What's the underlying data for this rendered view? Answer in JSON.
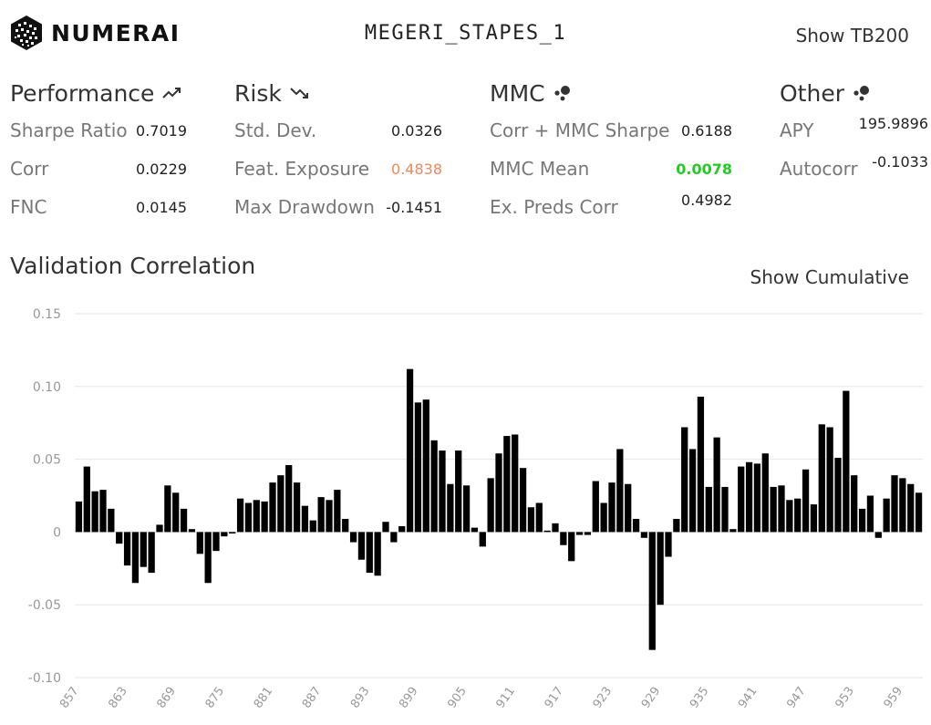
{
  "header": {
    "brand": "NUMERAI",
    "model_name": "MEGERI_STAPES_1",
    "show_tb200_label": "Show TB200"
  },
  "sections": {
    "performance": {
      "title": "Performance",
      "icon": "trending-up-icon",
      "metrics": [
        {
          "label": "Sharpe Ratio",
          "value": "0.7019"
        },
        {
          "label": "Corr",
          "value": "0.0229"
        },
        {
          "label": "FNC",
          "value": "0.0145"
        }
      ]
    },
    "risk": {
      "title": "Risk",
      "icon": "trending-down-icon",
      "metrics": [
        {
          "label": "Std. Dev.",
          "value": "0.0326"
        },
        {
          "label": "Feat. Exposure",
          "value": "0.4838"
        },
        {
          "label": "Max Drawdown",
          "value": "-0.1451"
        }
      ]
    },
    "mmc": {
      "title": "MMC",
      "icon": "bubbles-icon",
      "metrics": [
        {
          "label": "Corr + MMC Sharpe",
          "value": "0.6188"
        },
        {
          "label": "MMC Mean",
          "value": "0.0078"
        },
        {
          "label": "Ex. Preds Corr",
          "value": "0.4982"
        }
      ]
    },
    "other": {
      "title": "Other",
      "icon": "bubbles-icon",
      "metrics": [
        {
          "label": "APY",
          "value": "195.9896"
        },
        {
          "label": "Autocorr",
          "value": "-0.1033"
        }
      ]
    }
  },
  "colors": {
    "warning": "#f0885a",
    "positive": "#22cc22",
    "bar": "#000000",
    "grid": "#e6e6e6",
    "tick_label": "#999999"
  },
  "chart": {
    "title": "Validation Correlation",
    "show_cumulative_label": "Show Cumulative"
  },
  "chart_data": {
    "type": "bar",
    "title": "Validation Correlation",
    "xlabel": "",
    "ylabel": "",
    "ylim": [
      -0.1,
      0.15
    ],
    "grid": true,
    "legend": "none",
    "yticks": [
      "0.15",
      "0.10",
      "0.05",
      "0",
      "-0.05",
      "-0.10"
    ],
    "ytick_values": [
      0.15,
      0.1,
      0.05,
      0,
      -0.05,
      -0.1
    ],
    "xticks": [
      "857",
      "863",
      "869",
      "875",
      "881",
      "887",
      "893",
      "899",
      "905",
      "911",
      "917",
      "923",
      "929",
      "935",
      "941",
      "947",
      "953",
      "959"
    ],
    "x_start": 857,
    "values": [
      0.021,
      0.045,
      0.028,
      0.029,
      0.016,
      -0.008,
      -0.023,
      -0.035,
      -0.024,
      -0.028,
      0.005,
      0.032,
      0.027,
      0.016,
      0.002,
      -0.015,
      -0.035,
      -0.013,
      -0.003,
      -0.001,
      0.023,
      0.02,
      0.022,
      0.021,
      0.034,
      0.039,
      0.046,
      0.034,
      0.018,
      0.008,
      0.024,
      0.022,
      0.029,
      0.009,
      -0.007,
      -0.019,
      -0.028,
      -0.03,
      0.007,
      -0.007,
      0.004,
      0.112,
      0.089,
      0.091,
      0.063,
      0.056,
      0.033,
      0.056,
      0.032,
      0.003,
      -0.01,
      0.037,
      0.054,
      0.066,
      0.067,
      0.044,
      0.017,
      0.02,
      0.001,
      0.006,
      -0.009,
      -0.02,
      -0.002,
      -0.002,
      0.035,
      0.02,
      0.034,
      0.057,
      0.033,
      0.009,
      -0.004,
      -0.081,
      -0.05,
      -0.017,
      0.009,
      0.072,
      0.057,
      0.093,
      0.031,
      0.065,
      0.031,
      0.002,
      0.045,
      0.048,
      0.047,
      0.054,
      0.031,
      0.032,
      0.022,
      0.023,
      0.043,
      0.019,
      0.074,
      0.072,
      0.051,
      0.097,
      0.039,
      0.016,
      0.025,
      -0.004,
      0.023,
      0.039,
      0.037,
      0.033,
      0.027
    ]
  }
}
